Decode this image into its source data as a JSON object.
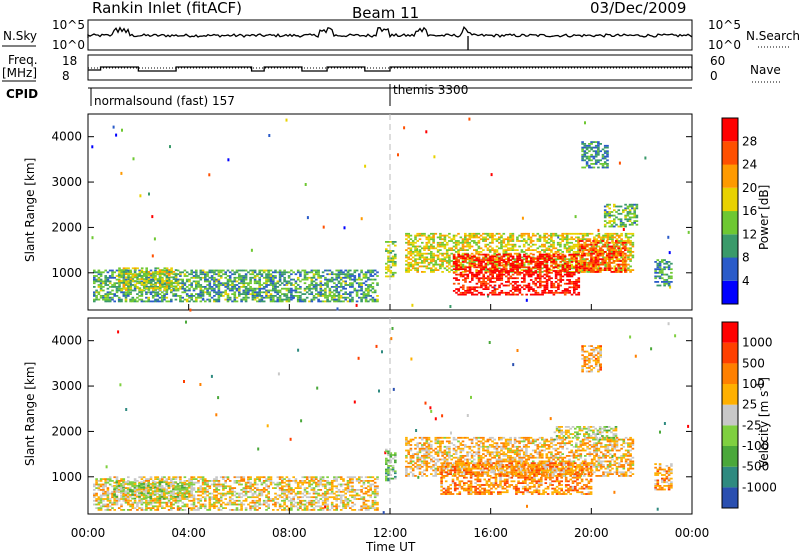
{
  "header": {
    "title": "Rankin Inlet (fitACF)",
    "beam": "Beam 11",
    "date": "03/Dec/2009"
  },
  "sky_panel": {
    "left_label": "N.Sky",
    "right_label": "N.Search",
    "left_ticks": [
      "10^5",
      "10^0"
    ],
    "right_ticks": [
      "10^5",
      "10^0"
    ]
  },
  "freq_panel": {
    "left_label_1": "Freq.",
    "left_label_2": "[MHz]",
    "right_label": "Nave",
    "left_ticks": [
      "18",
      "8"
    ],
    "right_ticks": [
      "60",
      "0"
    ]
  },
  "cpid": {
    "label": "CPID",
    "segments": [
      {
        "start_hour": 0,
        "text": "normalsound (fast) 157"
      },
      {
        "start_hour": 12,
        "text": "themis 3300"
      }
    ]
  },
  "x_axis": {
    "label": "Time UT",
    "range_hours": [
      0,
      24
    ],
    "ticks": [
      "00:00",
      "04:00",
      "08:00",
      "12:00",
      "16:00",
      "20:00",
      "00:00"
    ]
  },
  "chart_data": [
    {
      "type": "heatmap",
      "name": "power",
      "ylabel": "Slant Range [km]",
      "ylim": [
        180,
        4500
      ],
      "yticks": [
        "1000",
        "2000",
        "3000",
        "4000"
      ],
      "colorbar": {
        "label": "Power [dB]",
        "range": [
          0,
          32
        ],
        "ticks": [
          "4",
          "8",
          "12",
          "16",
          "20",
          "24",
          "28"
        ],
        "colors": [
          "#0000ff",
          "#2a5bc9",
          "#3a9a6a",
          "#6ec832",
          "#e8d200",
          "#ff9a00",
          "#ff5000",
          "#ff0000"
        ]
      },
      "regions": [
        {
          "t": [
            0.2,
            11.5
          ],
          "r": [
            350,
            1050
          ],
          "level": 0.35
        },
        {
          "t": [
            1.2,
            3.5
          ],
          "r": [
            600,
            1100
          ],
          "level": 0.5
        },
        {
          "t": [
            11.8,
            12.2
          ],
          "r": [
            900,
            1700
          ],
          "level": 0.45
        },
        {
          "t": [
            12.6,
            21.6
          ],
          "r": [
            1000,
            1850
          ],
          "level": 0.55
        },
        {
          "t": [
            14.5,
            19.5
          ],
          "r": [
            500,
            1400
          ],
          "level": 0.95
        },
        {
          "t": [
            19.5,
            21.3
          ],
          "r": [
            1000,
            1700
          ],
          "level": 0.85
        },
        {
          "t": [
            19.6,
            20.6
          ],
          "r": [
            3300,
            3900
          ],
          "level": 0.3
        },
        {
          "t": [
            20.5,
            21.8
          ],
          "r": [
            2000,
            2500
          ],
          "level": 0.4
        },
        {
          "t": [
            22.5,
            23.2
          ],
          "r": [
            700,
            1300
          ],
          "level": 0.3
        }
      ]
    },
    {
      "type": "heatmap",
      "name": "velocity",
      "ylabel": "Slant Range [km]",
      "ylim": [
        180,
        4500
      ],
      "yticks": [
        "1000",
        "2000",
        "3000",
        "4000"
      ],
      "colorbar": {
        "label": "Velocity [m s^-1]",
        "range": [
          -1000,
          1000
        ],
        "ticks": [
          "1000",
          "500",
          "100",
          "25",
          "-25",
          "-100",
          "-500",
          "-1000"
        ],
        "colors": [
          "#2a4fb0",
          "#2f8a80",
          "#4aa83a",
          "#7fd040",
          "#c8c8c8",
          "#ffb000",
          "#ff8000",
          "#ff4000",
          "#ff0000"
        ]
      },
      "regions": [
        {
          "t": [
            0.2,
            11.5
          ],
          "r": [
            250,
            1000
          ],
          "level": 0.55
        },
        {
          "t": [
            1.0,
            4.0
          ],
          "r": [
            500,
            900
          ],
          "level": 0.45
        },
        {
          "t": [
            11.8,
            12.2
          ],
          "r": [
            900,
            1600
          ],
          "level": 0.35
        },
        {
          "t": [
            12.6,
            21.6
          ],
          "r": [
            1000,
            1850
          ],
          "level": 0.6
        },
        {
          "t": [
            14.0,
            20.0
          ],
          "r": [
            600,
            1300
          ],
          "level": 0.7
        },
        {
          "t": [
            18.5,
            21.0
          ],
          "r": [
            1800,
            2100
          ],
          "level": 0.48
        },
        {
          "t": [
            19.6,
            20.4
          ],
          "r": [
            3300,
            3900
          ],
          "level": 0.62
        },
        {
          "t": [
            22.5,
            23.2
          ],
          "r": [
            700,
            1300
          ],
          "level": 0.65
        }
      ]
    }
  ]
}
